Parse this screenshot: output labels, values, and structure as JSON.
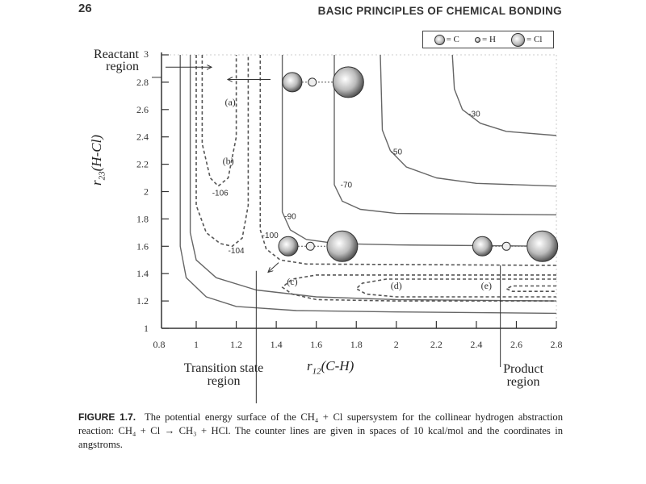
{
  "header": {
    "page_number": "26",
    "running_head": "BASIC PRINCIPLES OF CHEMICAL BONDING"
  },
  "legend": [
    {
      "symbol": "carbon-ball",
      "label": "= C"
    },
    {
      "symbol": "hydrogen-ball",
      "label": "= H"
    },
    {
      "symbol": "chlorine-ball",
      "label": "= Cl"
    }
  ],
  "regions": {
    "reactant": "Reactant region",
    "transition": "Transition state region",
    "product": "Product region"
  },
  "chart_data": {
    "type": "line",
    "subtype": "contour",
    "xlabel": {
      "var": "r",
      "sub": "12",
      "rest": "(C-H)"
    },
    "ylabel": {
      "var": "r",
      "sub": "23",
      "rest": "(H-Cl)"
    },
    "xlim": [
      0.8,
      2.8
    ],
    "ylim": [
      1,
      3
    ],
    "xticks": [
      "0.8",
      "1",
      "1.2",
      "1.4",
      "1.6",
      "1.8",
      "2",
      "2.2",
      "2.4",
      "2.6",
      "2.8"
    ],
    "yticks": [
      "1",
      "1.2",
      "1.4",
      "1.6",
      "1.8",
      "2",
      "2.2",
      "2.4",
      "2.6",
      "2.8",
      "3"
    ],
    "grid": false,
    "contours": [
      {
        "label": "",
        "style": "solid",
        "points": [
          [
            0.92,
            3
          ],
          [
            0.92,
            1.6
          ],
          [
            0.95,
            1.37
          ],
          [
            1.05,
            1.23
          ],
          [
            1.2,
            1.16
          ],
          [
            1.5,
            1.13
          ],
          [
            2.0,
            1.12
          ],
          [
            2.8,
            1.11
          ]
        ]
      },
      {
        "label": "",
        "style": "solid",
        "points": [
          [
            0.97,
            3
          ],
          [
            0.97,
            1.7
          ],
          [
            1.0,
            1.5
          ],
          [
            1.1,
            1.37
          ],
          [
            1.3,
            1.28
          ],
          [
            1.6,
            1.23
          ],
          [
            2.0,
            1.21
          ],
          [
            2.8,
            1.2
          ]
        ]
      },
      {
        "label": "-90",
        "style": "solid",
        "label_at": [
          1.47,
          1.8
        ],
        "points": [
          [
            1.43,
            3
          ],
          [
            1.43,
            1.85
          ],
          [
            1.47,
            1.72
          ],
          [
            1.55,
            1.65
          ],
          [
            1.7,
            1.62
          ],
          [
            2.0,
            1.61
          ],
          [
            2.8,
            1.6
          ]
        ]
      },
      {
        "label": "-70",
        "style": "solid",
        "label_at": [
          1.75,
          2.03
        ],
        "points": [
          [
            1.69,
            3
          ],
          [
            1.69,
            2.05
          ],
          [
            1.73,
            1.93
          ],
          [
            1.82,
            1.87
          ],
          [
            2.0,
            1.84
          ],
          [
            2.8,
            1.83
          ]
        ]
      },
      {
        "label": "-50",
        "style": "solid",
        "label_at": [
          2.0,
          2.27
        ],
        "points": [
          [
            1.92,
            3
          ],
          [
            1.93,
            2.45
          ],
          [
            1.97,
            2.3
          ],
          [
            2.05,
            2.18
          ],
          [
            2.2,
            2.1
          ],
          [
            2.4,
            2.06
          ],
          [
            2.8,
            2.04
          ]
        ]
      },
      {
        "label": "-30",
        "style": "solid",
        "label_at": [
          2.39,
          2.55
        ],
        "points": [
          [
            2.28,
            3
          ],
          [
            2.29,
            2.75
          ],
          [
            2.33,
            2.6
          ],
          [
            2.42,
            2.5
          ],
          [
            2.55,
            2.44
          ],
          [
            2.8,
            2.41
          ]
        ]
      },
      {
        "label": "-106",
        "style": "dashed",
        "label_at": [
          1.12,
          1.97
        ],
        "points": [
          [
            1.03,
            3
          ],
          [
            1.03,
            2.35
          ],
          [
            1.07,
            2.1
          ],
          [
            1.11,
            2.04
          ],
          [
            1.16,
            2.1
          ],
          [
            1.2,
            2.4
          ],
          [
            1.2,
            3
          ]
        ]
      },
      {
        "label": "-104",
        "style": "dashed",
        "label_at": [
          1.2,
          1.55
        ],
        "points": [
          [
            1.0,
            3
          ],
          [
            1.0,
            1.9
          ],
          [
            1.05,
            1.7
          ],
          [
            1.12,
            1.62
          ],
          [
            1.18,
            1.6
          ],
          [
            1.23,
            1.66
          ],
          [
            1.26,
            1.9
          ],
          [
            1.26,
            3
          ]
        ]
      },
      {
        "label": "-100",
        "style": "dashed",
        "label_at": [
          1.37,
          1.66
        ],
        "points": [
          [
            1.32,
            3
          ],
          [
            1.32,
            1.72
          ],
          [
            1.35,
            1.58
          ],
          [
            1.42,
            1.5
          ],
          [
            1.55,
            1.47
          ],
          [
            2.8,
            1.46
          ]
        ]
      },
      {
        "label": "",
        "style": "dashed",
        "points": [
          [
            2.8,
            1.39
          ],
          [
            1.6,
            1.39
          ],
          [
            1.48,
            1.36
          ],
          [
            1.43,
            1.3
          ],
          [
            1.48,
            1.25
          ],
          [
            1.6,
            1.21
          ],
          [
            2.0,
            1.2
          ],
          [
            2.8,
            1.2
          ]
        ]
      },
      {
        "label": "",
        "style": "dashed",
        "points": [
          [
            2.8,
            1.36
          ],
          [
            1.95,
            1.36
          ],
          [
            1.83,
            1.33
          ],
          [
            1.8,
            1.29
          ],
          [
            1.85,
            1.25
          ],
          [
            2.0,
            1.23
          ],
          [
            2.8,
            1.23
          ]
        ]
      },
      {
        "label": "",
        "style": "dashed",
        "points": [
          [
            2.8,
            1.31
          ],
          [
            2.58,
            1.31
          ],
          [
            2.55,
            1.29
          ],
          [
            2.58,
            1.27
          ],
          [
            2.8,
            1.27
          ]
        ]
      }
    ],
    "annotations": [
      {
        "text": "(a)",
        "at": [
          1.17,
          2.63
        ]
      },
      {
        "text": "(b)",
        "at": [
          1.16,
          2.2
        ]
      },
      {
        "text": "(c)",
        "at": [
          1.48,
          1.32
        ]
      },
      {
        "text": "(d)",
        "at": [
          2.0,
          1.29
        ]
      },
      {
        "text": "(e)",
        "at": [
          2.45,
          1.29
        ]
      }
    ],
    "molecules": [
      {
        "atoms": [
          {
            "type": "C",
            "at": [
              1.48,
              2.8
            ]
          },
          {
            "type": "H",
            "at": [
              1.58,
              2.8
            ]
          },
          {
            "type": "Cl",
            "at": [
              1.76,
              2.8
            ]
          }
        ]
      },
      {
        "atoms": [
          {
            "type": "C",
            "at": [
              1.46,
              1.6
            ]
          },
          {
            "type": "H",
            "at": [
              1.57,
              1.6
            ]
          },
          {
            "type": "Cl",
            "at": [
              1.73,
              1.6
            ]
          }
        ]
      },
      {
        "atoms": [
          {
            "type": "C",
            "at": [
              2.43,
              1.6
            ]
          },
          {
            "type": "H",
            "at": [
              2.55,
              1.6
            ]
          },
          {
            "type": "Cl",
            "at": [
              2.73,
              1.6
            ]
          }
        ]
      }
    ],
    "colors": {
      "ink": "#333333",
      "paper": "#ffffff"
    }
  },
  "caption": {
    "label": "FIGURE 1.7.",
    "text": "The potential energy surface of the CH₄ + Cl supersystem for the collinear hydrogen abstraction reaction: CH₄ + Cl → CH₃ + HCl. The counter lines are given in spaces of 10 kcal/mol and the coordinates in angstroms."
  }
}
